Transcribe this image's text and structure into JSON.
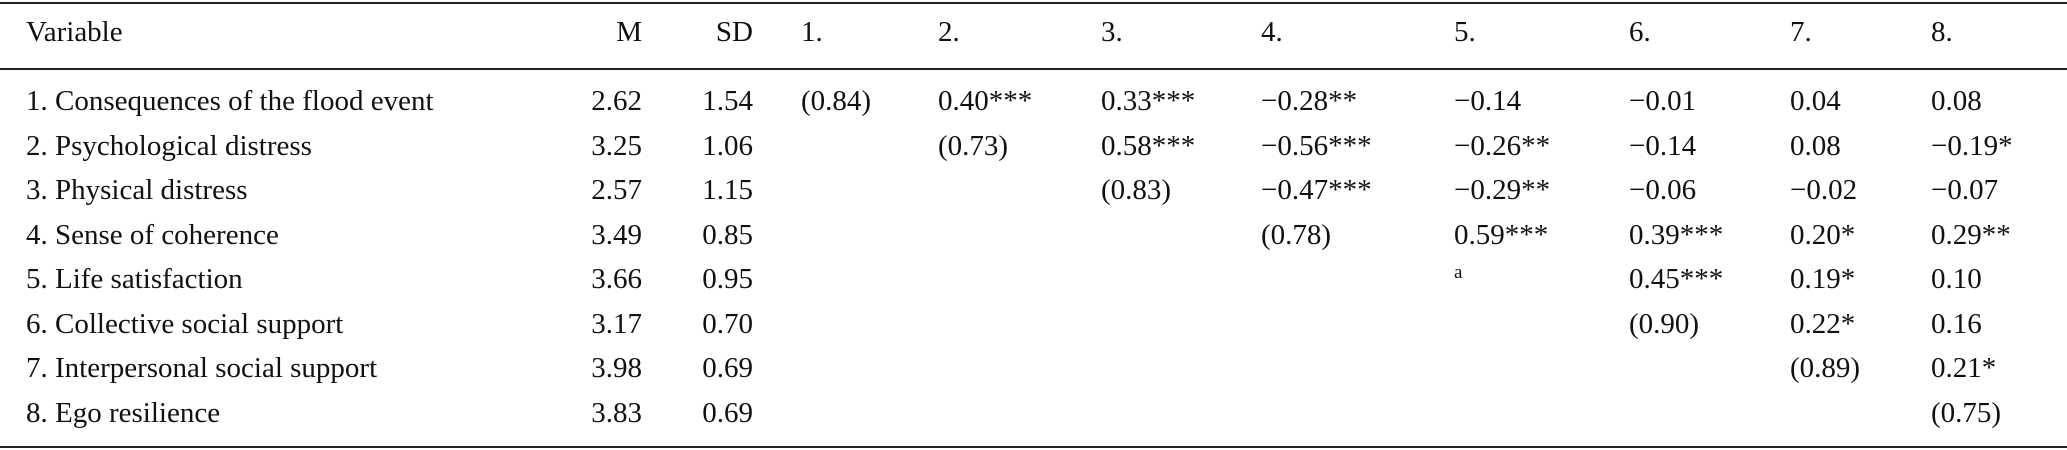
{
  "table": {
    "header": [
      "Variable",
      "M",
      "SD",
      "1.",
      "2.",
      "3.",
      "4.",
      "5.",
      "6.",
      "7.",
      "8."
    ],
    "rows": [
      [
        "1. Consequences of the flood event",
        "2.62",
        "1.54",
        "(0.84)",
        "0.40***",
        "0.33***",
        "−0.28**",
        "−0.14",
        "−0.01",
        "0.04",
        "0.08"
      ],
      [
        "2. Psychological distress",
        "3.25",
        "1.06",
        null,
        "(0.73)",
        "0.58***",
        "−0.56***",
        "−0.26**",
        "−0.14",
        "0.08",
        "−0.19*"
      ],
      [
        "3. Physical distress",
        "2.57",
        "1.15",
        null,
        null,
        "(0.83)",
        "−0.47***",
        "−0.29**",
        "−0.06",
        "−0.02",
        "−0.07"
      ],
      [
        "4. Sense of coherence",
        "3.49",
        "0.85",
        null,
        null,
        null,
        "(0.78)",
        "0.59***",
        "0.39***",
        "0.20*",
        "0.29**"
      ],
      [
        "5. Life satisfaction",
        "3.66",
        "0.95",
        null,
        null,
        null,
        null,
        "a",
        "0.45***",
        "0.19*",
        "0.10"
      ],
      [
        "6. Collective social support",
        "3.17",
        "0.70",
        null,
        null,
        null,
        null,
        null,
        "(0.90)",
        "0.22*",
        "0.16"
      ],
      [
        "7. Interpersonal social support",
        "3.98",
        "0.69",
        null,
        null,
        null,
        null,
        null,
        null,
        "(0.89)",
        "0.21*"
      ],
      [
        "8. Ego resilience",
        "3.83",
        "0.69",
        null,
        null,
        null,
        null,
        null,
        null,
        null,
        "(0.75)"
      ]
    ]
  }
}
